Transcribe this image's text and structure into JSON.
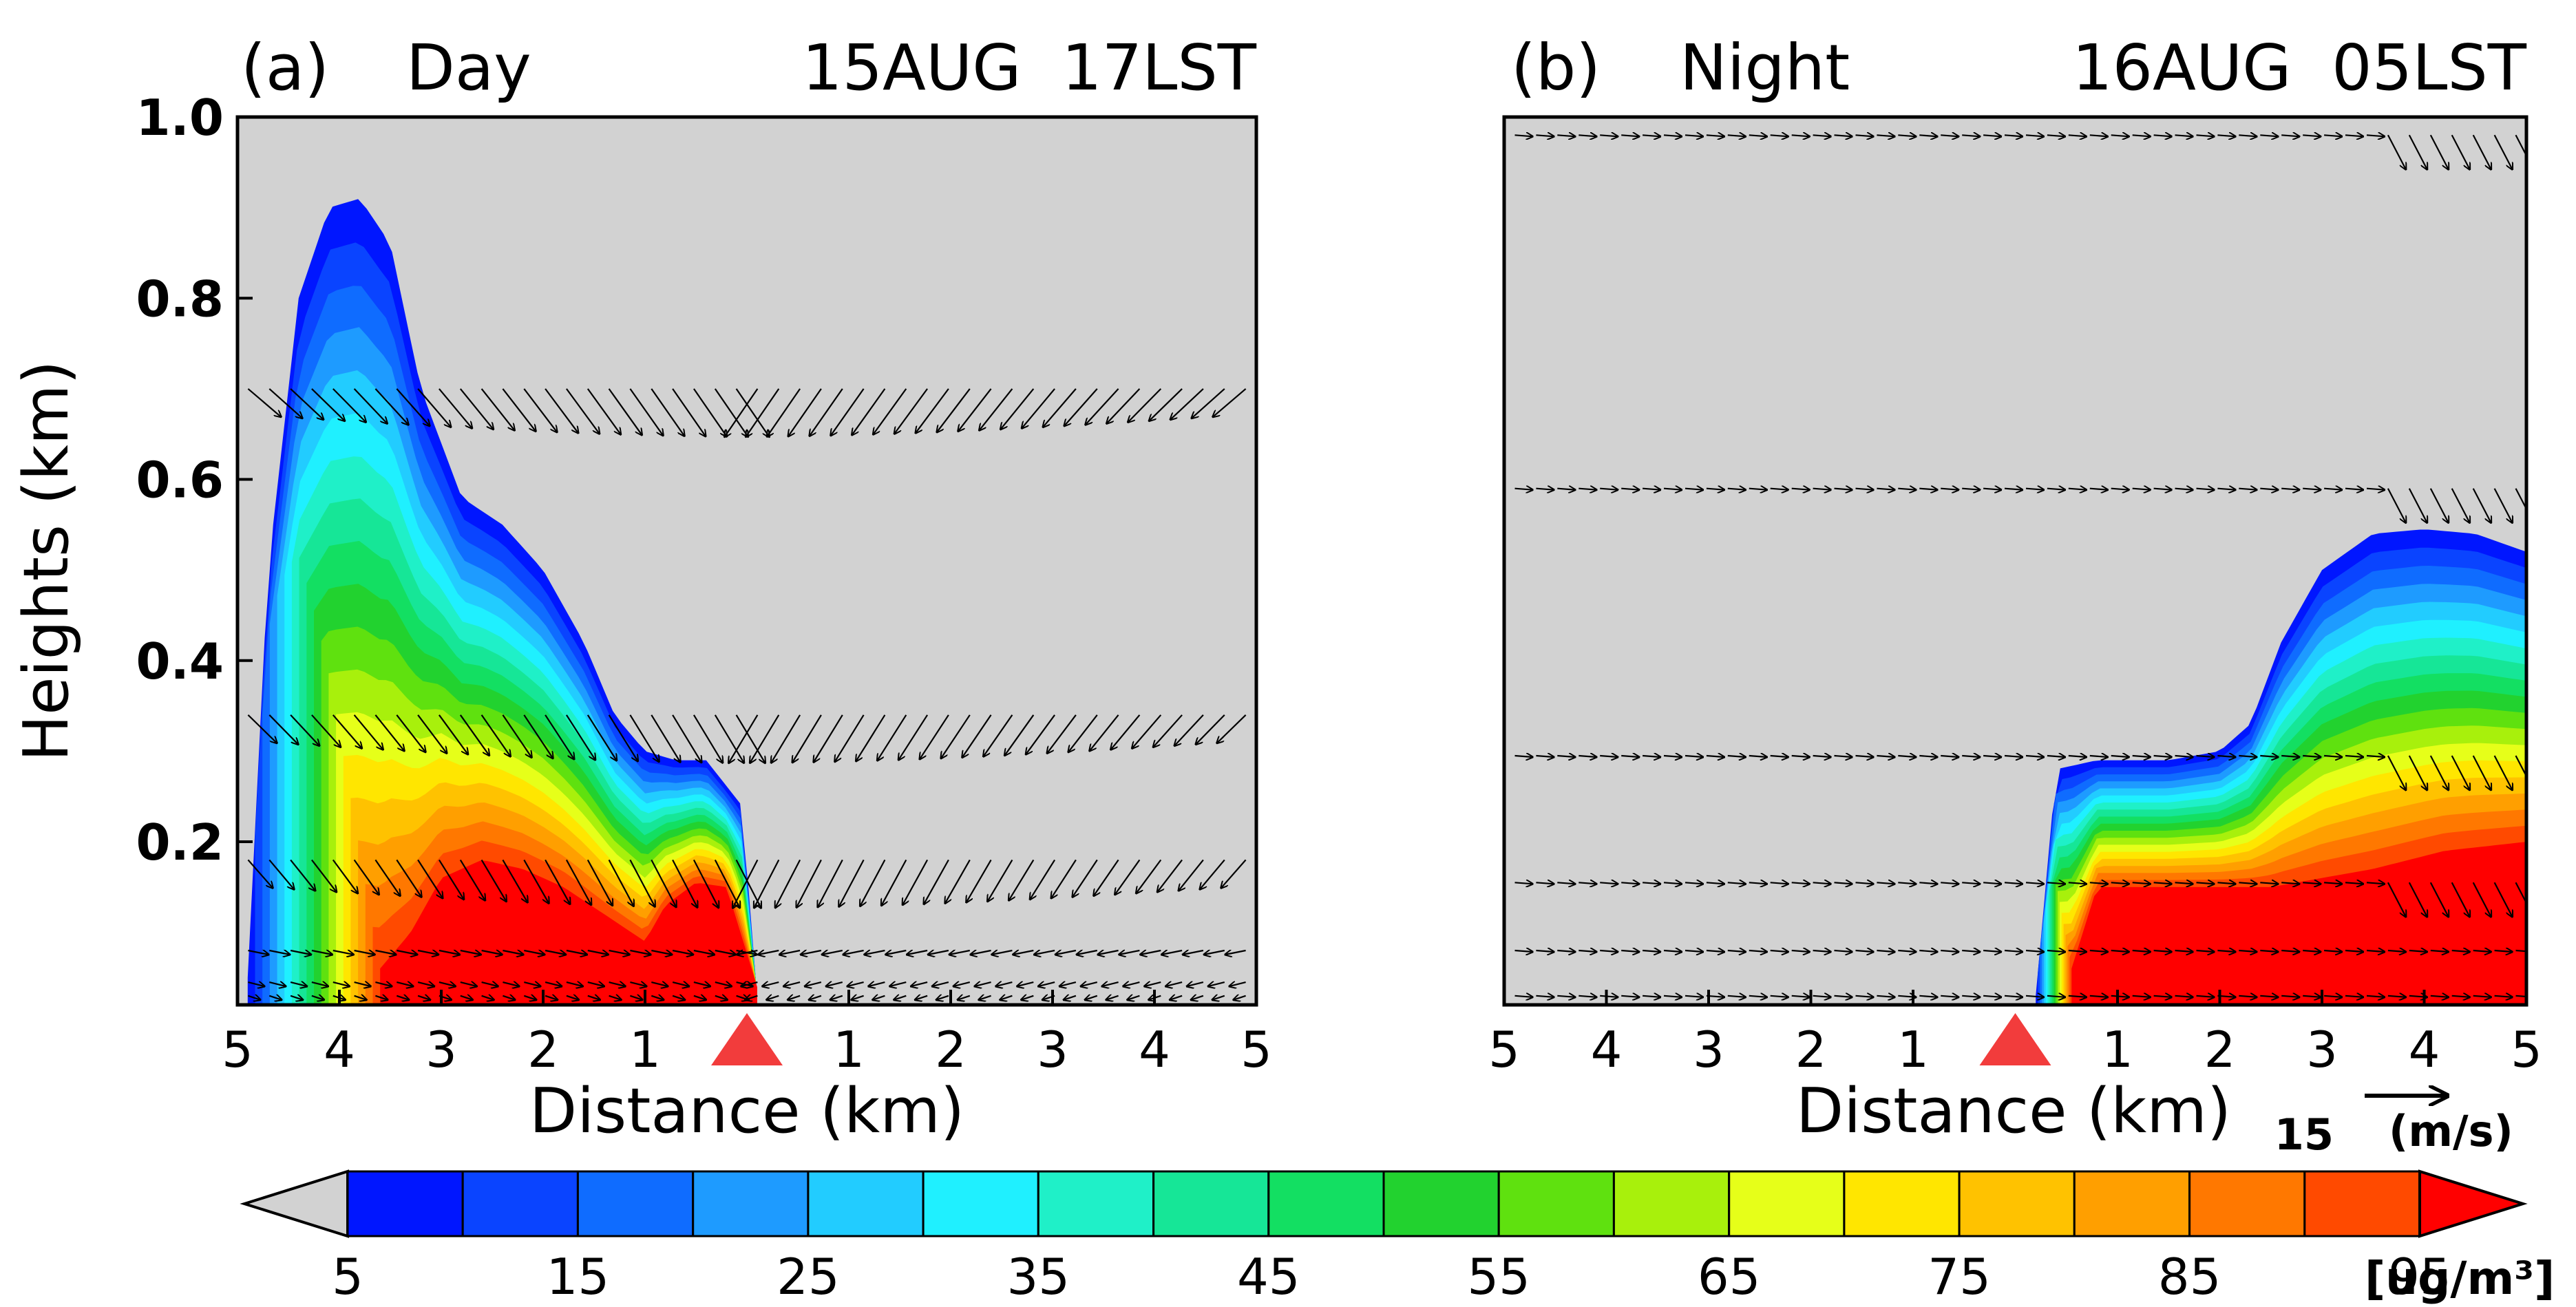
{
  "chart_data": [
    {
      "type": "contour",
      "panel_label": "(a)",
      "title": "Day",
      "time_label": "15AUG  17LST",
      "xlabel": "Distance (km)",
      "ylabel": "Heights (km)",
      "x_ticks": [
        "5",
        "4",
        "3",
        "2",
        "1",
        "1",
        "2",
        "3",
        "4",
        "5"
      ],
      "y_ticks": [
        "1.0",
        "0.8",
        "0.6",
        "0.4",
        "0.2"
      ],
      "y_tick_values": [
        1.0,
        0.8,
        0.6,
        0.4,
        0.2
      ],
      "xlim": [
        -5,
        5
      ],
      "ylim": [
        0.02,
        1.0
      ],
      "source_marker_x": 0,
      "plume_profile": {
        "x": [
          -4.9,
          -4.7,
          -4.4,
          -4.1,
          -3.8,
          -3.5,
          -3.2,
          -2.8,
          -2.4,
          -2.0,
          -1.6,
          -1.3,
          -1.0,
          -0.7,
          -0.4,
          -0.05,
          0.1
        ],
        "top": [
          0.05,
          0.5,
          0.8,
          0.9,
          0.91,
          0.86,
          0.7,
          0.58,
          0.55,
          0.5,
          0.42,
          0.34,
          0.3,
          0.29,
          0.29,
          0.24,
          0.03
        ]
      },
      "core_profile": {
        "x": [
          -3.6,
          -3.3,
          -3.0,
          -2.6,
          -2.2,
          -1.8,
          -1.4,
          -1.0,
          -0.8,
          -0.5,
          -0.2,
          0.1
        ],
        "top": [
          0.06,
          0.1,
          0.16,
          0.18,
          0.17,
          0.15,
          0.12,
          0.09,
          0.13,
          0.155,
          0.15,
          0.04
        ]
      },
      "wind_vector_rows": {
        "heights": [
          0.03,
          0.045,
          0.08,
          0.18,
          0.34,
          0.7
        ],
        "direction": "mostly descending, converging toward source"
      },
      "vector_reference": {
        "value": "15",
        "unit": ""
      }
    },
    {
      "type": "contour",
      "panel_label": "(b)",
      "title": "Night",
      "time_label": "16AUG  05LST",
      "xlabel": "Distance (km)",
      "ylabel": "",
      "x_ticks": [
        "5",
        "4",
        "3",
        "2",
        "1",
        "1",
        "2",
        "3",
        "4",
        "5"
      ],
      "y_ticks": [],
      "xlim": [
        -5,
        5
      ],
      "ylim": [
        0.02,
        1.0
      ],
      "source_marker_x": 0,
      "plume_profile": {
        "x": [
          0.2,
          0.4,
          0.8,
          1.5,
          2.0,
          2.3,
          2.6,
          3.0,
          3.5,
          4.0,
          4.5,
          5.0
        ],
        "top": [
          0.03,
          0.28,
          0.29,
          0.29,
          0.3,
          0.33,
          0.42,
          0.5,
          0.54,
          0.545,
          0.54,
          0.52
        ]
      },
      "core_profile": {
        "x": [
          0.55,
          0.8,
          1.5,
          2.5,
          3.5,
          4.2,
          5.0
        ],
        "top": [
          0.06,
          0.15,
          0.15,
          0.15,
          0.17,
          0.19,
          0.2
        ]
      },
      "wind_vector_rows": {
        "heights": [
          0.03,
          0.08,
          0.155,
          0.295,
          0.59,
          0.98
        ],
        "direction": "mostly toward the east, descending near x = 4"
      },
      "vector_reference": {
        "value": "15",
        "unit": "(m/s)"
      }
    }
  ],
  "colorbar": {
    "unit": "[ug/m³]",
    "tick_labels": [
      "5",
      "15",
      "25",
      "35",
      "45",
      "55",
      "65",
      "75",
      "85",
      "95"
    ],
    "levels": [
      5,
      10,
      15,
      20,
      25,
      30,
      35,
      40,
      45,
      50,
      55,
      60,
      65,
      70,
      75,
      80,
      85,
      90,
      95
    ],
    "colors": [
      "#0016ff",
      "#0a44ff",
      "#0f6cff",
      "#1e9bff",
      "#22ccff",
      "#1ff0ff",
      "#1ff0c8",
      "#16e697",
      "#13df62",
      "#22d22f",
      "#5fe10f",
      "#a8f00c",
      "#e6ff19",
      "#ffe600",
      "#ffc200",
      "#ff9f00",
      "#ff7800",
      "#ff4a00"
    ],
    "under_color": "#d2d2d2",
    "over_color": "#ff0000"
  },
  "colors": {
    "background_gray": "#d2d2d2",
    "source_marker": "#f23c3c",
    "vector": "#000000"
  }
}
